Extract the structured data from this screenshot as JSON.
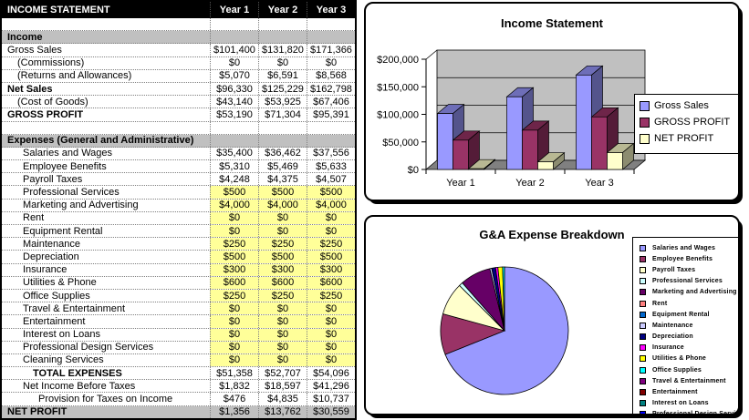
{
  "table": {
    "title": "INCOME STATEMENT",
    "columns": [
      "Year 1",
      "Year 2",
      "Year 3"
    ],
    "rows": [
      {
        "label": "",
        "style": "blank",
        "values": [
          "",
          "",
          ""
        ]
      },
      {
        "label": "Income",
        "style": "section",
        "values": [
          "",
          "",
          ""
        ]
      },
      {
        "label": "Gross Sales",
        "indent": 0,
        "values": [
          "$101,400",
          "$131,820",
          "$171,366"
        ]
      },
      {
        "label": "(Commissions)",
        "indent": 1,
        "values": [
          "$0",
          "$0",
          "$0"
        ]
      },
      {
        "label": "(Returns and Allowances)",
        "indent": 1,
        "values": [
          "$5,070",
          "$6,591",
          "$8,568"
        ]
      },
      {
        "label": "Net Sales",
        "indent": 0,
        "bold": true,
        "values": [
          "$96,330",
          "$125,229",
          "$162,798"
        ]
      },
      {
        "label": "(Cost of Goods)",
        "indent": 1,
        "values": [
          "$43,140",
          "$53,925",
          "$67,406"
        ]
      },
      {
        "label": "GROSS PROFIT",
        "indent": 0,
        "bold": true,
        "values": [
          "$53,190",
          "$71,304",
          "$95,391"
        ]
      },
      {
        "label": "",
        "style": "blank",
        "values": [
          "",
          "",
          ""
        ]
      },
      {
        "label": "Expenses (General and Administrative)",
        "style": "section",
        "values": [
          "",
          "",
          ""
        ]
      },
      {
        "label": "Salaries and Wages",
        "indent": 2,
        "values": [
          "$35,400",
          "$36,462",
          "$37,556"
        ]
      },
      {
        "label": "Employee Benefits",
        "indent": 2,
        "values": [
          "$5,310",
          "$5,469",
          "$5,633"
        ]
      },
      {
        "label": "Payroll Taxes",
        "indent": 2,
        "values": [
          "$4,248",
          "$4,375",
          "$4,507"
        ]
      },
      {
        "label": "Professional Services",
        "indent": 2,
        "yellow": true,
        "values": [
          "$500",
          "$500",
          "$500"
        ]
      },
      {
        "label": "Marketing and Advertising",
        "indent": 2,
        "yellow": true,
        "values": [
          "$4,000",
          "$4,000",
          "$4,000"
        ]
      },
      {
        "label": "Rent",
        "indent": 2,
        "yellow": true,
        "values": [
          "$0",
          "$0",
          "$0"
        ]
      },
      {
        "label": "Equipment Rental",
        "indent": 2,
        "yellow": true,
        "values": [
          "$0",
          "$0",
          "$0"
        ]
      },
      {
        "label": "Maintenance",
        "indent": 2,
        "yellow": true,
        "values": [
          "$250",
          "$250",
          "$250"
        ]
      },
      {
        "label": "Depreciation",
        "indent": 2,
        "yellow": true,
        "values": [
          "$500",
          "$500",
          "$500"
        ]
      },
      {
        "label": "Insurance",
        "indent": 2,
        "yellow": true,
        "values": [
          "$300",
          "$300",
          "$300"
        ]
      },
      {
        "label": "Utilities & Phone",
        "indent": 2,
        "yellow": true,
        "values": [
          "$600",
          "$600",
          "$600"
        ]
      },
      {
        "label": "Office Supplies",
        "indent": 2,
        "yellow": true,
        "values": [
          "$250",
          "$250",
          "$250"
        ]
      },
      {
        "label": "Travel & Entertainment",
        "indent": 2,
        "yellow": true,
        "values": [
          "$0",
          "$0",
          "$0"
        ]
      },
      {
        "label": "Entertainment",
        "indent": 2,
        "yellow": true,
        "values": [
          "$0",
          "$0",
          "$0"
        ]
      },
      {
        "label": "Interest on Loans",
        "indent": 2,
        "yellow": true,
        "values": [
          "$0",
          "$0",
          "$0"
        ]
      },
      {
        "label": "Professional Design Services",
        "indent": 2,
        "yellow": true,
        "values": [
          "$0",
          "$0",
          "$0"
        ]
      },
      {
        "label": "Cleaning Services",
        "indent": 2,
        "yellow": true,
        "values": [
          "$0",
          "$0",
          "$0"
        ]
      },
      {
        "label": "TOTAL EXPENSES",
        "indent": 3,
        "bold": true,
        "values": [
          "$51,358",
          "$52,707",
          "$54,096"
        ]
      },
      {
        "label": "Net Income Before Taxes",
        "indent": 2,
        "values": [
          "$1,832",
          "$18,597",
          "$41,296"
        ]
      },
      {
        "label": "Provision for Taxes on Income",
        "indent": 4,
        "values": [
          "$476",
          "$4,835",
          "$10,737"
        ]
      },
      {
        "label": "NET PROFIT",
        "style": "netprofit",
        "bold": true,
        "values": [
          "$1,356",
          "$13,762",
          "$30,559"
        ]
      }
    ]
  },
  "chart_data": [
    {
      "type": "bar",
      "style": "3d-clustered",
      "title": "Income Statement",
      "categories": [
        "Year 1",
        "Year 2",
        "Year 3"
      ],
      "series": [
        {
          "name": "Gross Sales",
          "color": "#9999FF",
          "values": [
            101400,
            131820,
            171366
          ]
        },
        {
          "name": "GROSS PROFIT",
          "color": "#993366",
          "values": [
            53190,
            71304,
            95391
          ]
        },
        {
          "name": "NET PROFIT",
          "color": "#FFFFCC",
          "values": [
            1356,
            13762,
            30559
          ]
        }
      ],
      "ylim": [
        0,
        200000
      ],
      "ytick_labels": [
        "$0",
        "$50,000",
        "$100,000",
        "$150,000",
        "$200,000"
      ],
      "legend_position": "right",
      "wall_color": "#C0C0C0",
      "floor_color": "#808080"
    },
    {
      "type": "pie",
      "title": "G&A Expense Breakdown",
      "labels": [
        "Salaries and Wages",
        "Employee Benefits",
        "Payroll Taxes",
        "Professional Services",
        "Marketing and Advertising",
        "Rent",
        "Equipment Rental",
        "Maintenance",
        "Depreciation",
        "Insurance",
        "Utilities & Phone",
        "Office Supplies",
        "Travel & Entertainment",
        "Entertainment",
        "Interest on Loans",
        "Professional Design Services"
      ],
      "values": [
        35400,
        5310,
        4248,
        500,
        4000,
        0,
        0,
        250,
        500,
        300,
        600,
        250,
        0,
        0,
        0,
        0
      ],
      "colors": [
        "#9999FF",
        "#993366",
        "#FFFFCC",
        "#CCFFFF",
        "#660066",
        "#FF8080",
        "#0066CC",
        "#CCCCFF",
        "#000080",
        "#FF00FF",
        "#FFFF00",
        "#00FFFF",
        "#800080",
        "#800000",
        "#008080",
        "#0000FF"
      ],
      "legend_position": "right"
    }
  ]
}
